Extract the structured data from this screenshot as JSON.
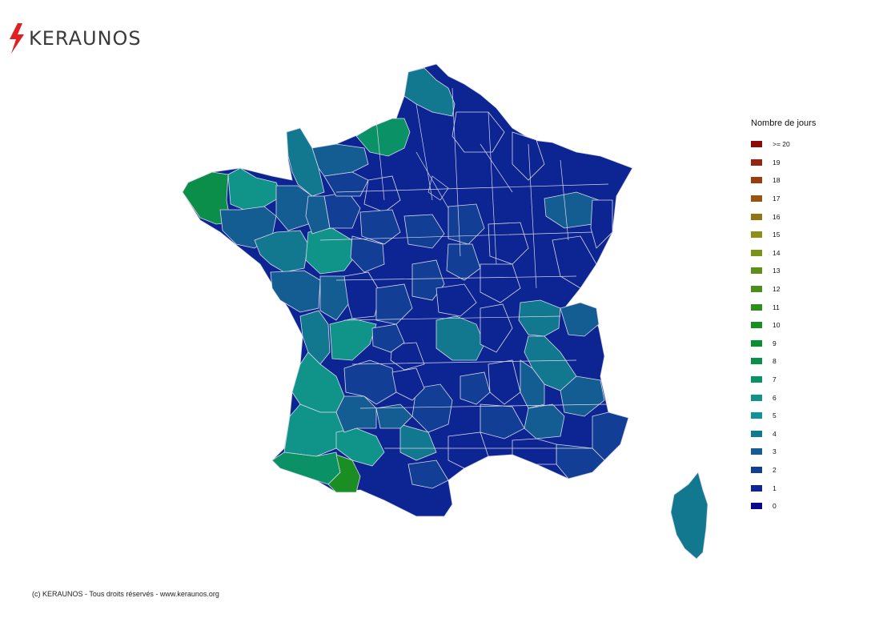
{
  "brand": {
    "name": "KERAUNOS",
    "accent": "#e02020"
  },
  "legend": {
    "title": "Nombre de jours",
    "items": [
      {
        "label": ">= 20",
        "color": "#8b0a0a"
      },
      {
        "label": "19",
        "color": "#972411"
      },
      {
        "label": "18",
        "color": "#9a3b10"
      },
      {
        "label": "17",
        "color": "#9a5412"
      },
      {
        "label": "16",
        "color": "#927412"
      },
      {
        "label": "15",
        "color": "#8f8e18"
      },
      {
        "label": "14",
        "color": "#7a911a"
      },
      {
        "label": "13",
        "color": "#5f8e1a"
      },
      {
        "label": "12",
        "color": "#4a8e1c"
      },
      {
        "label": "11",
        "color": "#2f8e1e"
      },
      {
        "label": "10",
        "color": "#1a8e22"
      },
      {
        "label": "9",
        "color": "#0a8e30"
      },
      {
        "label": "8",
        "color": "#0a8e4a"
      },
      {
        "label": "7",
        "color": "#0b9166"
      },
      {
        "label": "6",
        "color": "#10948a"
      },
      {
        "label": "5",
        "color": "#13929a"
      },
      {
        "label": "4",
        "color": "#12788f"
      },
      {
        "label": "3",
        "color": "#145d92"
      },
      {
        "label": "2",
        "color": "#123e96"
      },
      {
        "label": "1",
        "color": "#0c2592"
      },
      {
        "label": "0",
        "color": "#08088a"
      }
    ]
  },
  "map": {
    "colors": {
      "c0": "#08088a",
      "c1": "#0c2592",
      "c2": "#123e96",
      "c3": "#145d92",
      "c4": "#12788f",
      "c5": "#13929a",
      "c6": "#10948a",
      "c7": "#0b9166",
      "c8": "#0a8e4a",
      "c10": "#1a8e22",
      "border": "#d9d9ea"
    }
  },
  "footer": {
    "text": "(c) KERAUNOS - Tous droits réservés - www.keraunos.org"
  }
}
